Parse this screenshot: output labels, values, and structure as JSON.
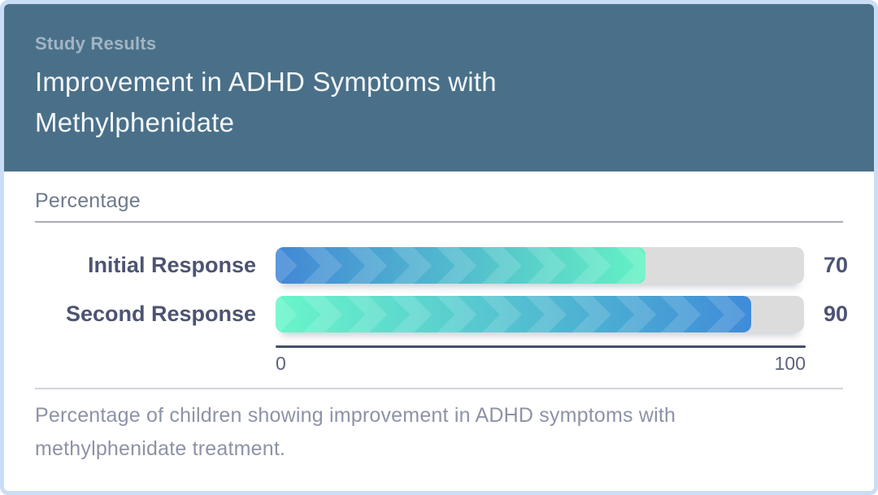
{
  "header": {
    "subtitle": "Study Results",
    "title": "Improvement in ADHD Symptoms with Methylphenidate"
  },
  "chart_data": {
    "type": "bar",
    "orientation": "horizontal",
    "title": "Improvement in ADHD Symptoms with Methylphenidate",
    "subtitle": "Study Results",
    "value_axis_label": "Percentage",
    "categories": [
      "Initial Response",
      "Second Response"
    ],
    "values": [
      70,
      90
    ],
    "xlim": [
      0,
      100
    ],
    "tick_labels": [
      "0",
      "100"
    ],
    "grid": false,
    "legend": false,
    "bar_style": {
      "track_color": "#dcdcdc",
      "gradients": [
        {
          "from": "#4287d6",
          "to": "#63f2c4"
        },
        {
          "from": "#69f6c9",
          "to": "#3f8bd8"
        }
      ],
      "pattern": "chevron-right"
    }
  },
  "caption": "Percentage of children showing improvement in ADHD symptoms with methylphenidate treatment.",
  "colors": {
    "card_border": "#c9ddf6",
    "header_background": "#4a7089",
    "subtitle_text": "#a2b4c3",
    "title_text": "#f3f6f8",
    "label_text": "#4d5472",
    "axis_line": "#444e68",
    "tick_text": "#5c6379",
    "caption_text": "#8d93a6"
  }
}
